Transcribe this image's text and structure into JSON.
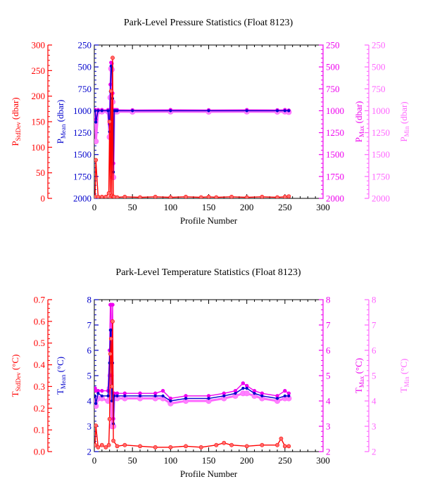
{
  "colors": {
    "stddev": "#ff0000",
    "stddev_fill": "#ff6a6a",
    "mean": "#0000cc",
    "max": "#ee00ee",
    "min": "#ff66ff",
    "min_fill": "#ff80ff"
  },
  "chart_data": [
    {
      "type": "line",
      "title": "Park-Level Pressure Statistics (Float 8123)",
      "xlabel": "Profile Number",
      "xlim": [
        0,
        300
      ],
      "x_ticks": [
        "0",
        "50",
        "100",
        "150",
        "200",
        "250",
        "300"
      ],
      "axes": {
        "stddev": {
          "label_main": "P",
          "label_sub": "StdDev",
          "label_unit": " (dbar)",
          "ylim": [
            0,
            300
          ],
          "ticks": [
            "0",
            "50",
            "100",
            "150",
            "200",
            "250",
            "300"
          ],
          "inverted": false
        },
        "mean": {
          "label_main": "P",
          "label_sub": "Mean",
          "label_unit": " (dbar)",
          "ylim": [
            250,
            2000
          ],
          "ticks": [
            "250",
            "500",
            "750",
            "1000",
            "1250",
            "1500",
            "1750",
            "2000"
          ],
          "inverted": true
        },
        "max": {
          "label_main": "P",
          "label_sub": "Max",
          "label_unit": " (dbar)",
          "ylim": [
            250,
            2000
          ],
          "ticks": [
            "250",
            "500",
            "750",
            "1000",
            "1250",
            "1500",
            "1750",
            "2000"
          ],
          "inverted": true
        },
        "min": {
          "label_main": "P",
          "label_sub": "Min",
          "label_unit": " (dbar)",
          "ylim": [
            250,
            2000
          ],
          "ticks": [
            "250",
            "500",
            "750",
            "1000",
            "1250",
            "1500",
            "1750",
            "2000"
          ],
          "inverted": true
        }
      },
      "series": [
        {
          "key": "stddev",
          "x": [
            1,
            2,
            5,
            10,
            15,
            19,
            20,
            21,
            22,
            23,
            24,
            25,
            26,
            30,
            40,
            60,
            80,
            100,
            120,
            140,
            150,
            160,
            180,
            200,
            220,
            240,
            250,
            255
          ],
          "values": [
            3,
            75,
            3,
            3,
            3,
            10,
            150,
            2,
            210,
            5,
            275,
            3,
            3,
            2,
            3,
            2,
            3,
            2,
            3,
            2,
            3,
            2,
            3,
            2,
            3,
            2,
            3,
            4
          ]
        },
        {
          "key": "mean",
          "x": [
            1,
            2,
            5,
            10,
            18,
            20,
            21,
            22,
            23,
            24,
            25,
            26,
            28,
            30,
            50,
            100,
            150,
            200,
            240,
            250,
            255
          ],
          "values": [
            1000,
            1130,
            1000,
            1000,
            1000,
            1240,
            780,
            490,
            500,
            860,
            1700,
            1000,
            1000,
            1000,
            1000,
            1000,
            1000,
            1000,
            1000,
            1000,
            1000
          ]
        },
        {
          "key": "max",
          "x": [
            1,
            2,
            5,
            10,
            18,
            20,
            21,
            22,
            23,
            24,
            25,
            26,
            28,
            30,
            50,
            100,
            150,
            200,
            240,
            250,
            255
          ],
          "values": [
            990,
            1100,
            990,
            990,
            990,
            1150,
            700,
            450,
            460,
            800,
            1600,
            990,
            990,
            990,
            992,
            990,
            992,
            990,
            992,
            990,
            995
          ]
        },
        {
          "key": "min",
          "x": [
            1,
            2,
            5,
            10,
            18,
            20,
            21,
            22,
            23,
            24,
            25,
            26,
            28,
            30,
            50,
            100,
            150,
            200,
            240,
            250,
            255
          ],
          "values": [
            1010,
            1350,
            1010,
            1010,
            1010,
            1300,
            850,
            520,
            530,
            900,
            1760,
            1010,
            1010,
            1010,
            1012,
            1010,
            1012,
            1010,
            1012,
            1010,
            1015
          ]
        }
      ]
    },
    {
      "type": "line",
      "title": "Park-Level Temperature Statistics (Float 8123)",
      "xlabel": "Profile Number",
      "xlim": [
        0,
        300
      ],
      "x_ticks": [
        "0",
        "50",
        "100",
        "150",
        "200",
        "250",
        "300"
      ],
      "axes": {
        "stddev": {
          "label_main": "T",
          "label_sub": "StdDev",
          "label_unit": " (°C)",
          "ylim": [
            0,
            0.7
          ],
          "ticks": [
            "0.0",
            "0.1",
            "0.2",
            "0.3",
            "0.4",
            "0.5",
            "0.6",
            "0.7"
          ],
          "inverted": false
        },
        "mean": {
          "label_main": "T",
          "label_sub": "Mean",
          "label_unit": " (°C)",
          "ylim": [
            2,
            8
          ],
          "ticks": [
            "2",
            "3",
            "4",
            "5",
            "6",
            "7",
            "8"
          ],
          "inverted": false
        },
        "max": {
          "label_main": "T",
          "label_sub": "Max",
          "label_unit": " (°C)",
          "ylim": [
            2,
            8
          ],
          "ticks": [
            "2",
            "3",
            "4",
            "5",
            "6",
            "7",
            "8"
          ],
          "inverted": false
        },
        "min": {
          "label_main": "T",
          "label_sub": "Min",
          "label_unit": " (°C)",
          "ylim": [
            2,
            8
          ],
          "ticks": [
            "2",
            "3",
            "4",
            "5",
            "6",
            "7",
            "8"
          ],
          "inverted": false
        }
      },
      "series": [
        {
          "key": "stddev",
          "x": [
            1,
            2,
            5,
            10,
            15,
            19,
            20,
            21,
            22,
            23,
            24,
            25,
            30,
            40,
            60,
            80,
            100,
            120,
            140,
            160,
            170,
            180,
            200,
            220,
            240,
            245,
            250,
            255
          ],
          "values": [
            0.03,
            0.12,
            0.02,
            0.03,
            0.02,
            0.03,
            0.15,
            0.45,
            0.52,
            0.3,
            0.6,
            0.05,
            0.025,
            0.03,
            0.025,
            0.02,
            0.02,
            0.025,
            0.02,
            0.03,
            0.04,
            0.03,
            0.025,
            0.03,
            0.03,
            0.06,
            0.025,
            0.025
          ]
        },
        {
          "key": "mean",
          "x": [
            1,
            2,
            5,
            10,
            18,
            20,
            21,
            22,
            23,
            24,
            25,
            26,
            30,
            40,
            60,
            80,
            90,
            100,
            120,
            150,
            170,
            185,
            195,
            200,
            210,
            220,
            240,
            250,
            255
          ],
          "values": [
            4.2,
            3.9,
            4.3,
            4.2,
            4.2,
            5.5,
            6.8,
            6.8,
            4.0,
            5.5,
            3.1,
            4.2,
            4.2,
            4.2,
            4.2,
            4.2,
            4.2,
            4.0,
            4.1,
            4.1,
            4.2,
            4.3,
            4.5,
            4.5,
            4.3,
            4.2,
            4.1,
            4.2,
            4.2
          ]
        },
        {
          "key": "max",
          "x": [
            1,
            2,
            5,
            10,
            18,
            20,
            21,
            22,
            23,
            24,
            25,
            26,
            30,
            40,
            60,
            80,
            90,
            100,
            120,
            150,
            170,
            185,
            195,
            200,
            210,
            220,
            240,
            250,
            255
          ],
          "values": [
            4.5,
            4.4,
            4.4,
            4.4,
            4.4,
            6.0,
            7.8,
            7.8,
            5.0,
            7.8,
            3.3,
            4.3,
            4.3,
            4.3,
            4.3,
            4.3,
            4.4,
            4.1,
            4.2,
            4.2,
            4.3,
            4.4,
            4.7,
            4.6,
            4.4,
            4.3,
            4.2,
            4.4,
            4.3
          ]
        },
        {
          "key": "min",
          "x": [
            1,
            2,
            5,
            10,
            18,
            20,
            21,
            22,
            23,
            24,
            25,
            26,
            30,
            40,
            60,
            80,
            90,
            100,
            120,
            150,
            170,
            185,
            195,
            200,
            210,
            220,
            240,
            250,
            255
          ],
          "values": [
            4.0,
            3.8,
            4.1,
            4.1,
            4.0,
            4.5,
            5.0,
            4.0,
            3.0,
            4.2,
            3.0,
            4.1,
            4.1,
            4.1,
            4.1,
            4.1,
            4.1,
            3.9,
            4.0,
            4.0,
            4.1,
            4.2,
            4.3,
            4.3,
            4.2,
            4.1,
            4.0,
            4.1,
            4.1
          ]
        }
      ]
    }
  ]
}
